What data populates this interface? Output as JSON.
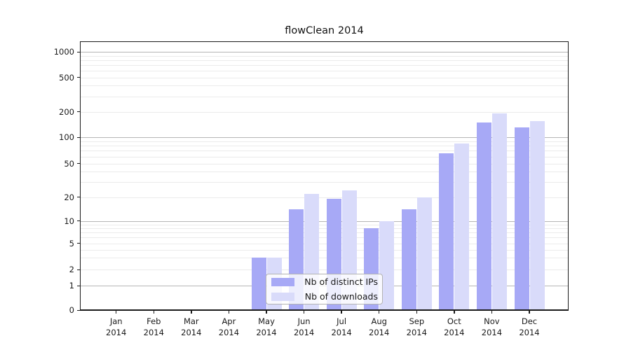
{
  "chart_data": {
    "type": "bar",
    "title": "flowClean 2014",
    "categories": [
      "Jan",
      "Feb",
      "Mar",
      "Apr",
      "May",
      "Jun",
      "Jul",
      "Aug",
      "Sep",
      "Oct",
      "Nov",
      "Dec"
    ],
    "category_year": "2014",
    "series": [
      {
        "name": "Nb of distinct IPs",
        "color": "#a7a9f6",
        "values": [
          0,
          0,
          0,
          0,
          3,
          14,
          19,
          8,
          14,
          65,
          150,
          130
        ]
      },
      {
        "name": "Nb of downloads",
        "color": "#d9dbfa",
        "values": [
          0,
          0,
          0,
          0,
          3,
          22,
          24,
          10,
          20,
          85,
          190,
          155
        ]
      }
    ],
    "yticks": [
      0,
      1,
      2,
      5,
      10,
      20,
      50,
      100,
      200,
      500,
      1000
    ],
    "yscale": "symlog",
    "ylim": [
      0,
      1300
    ],
    "xlabel": "",
    "ylabel": "",
    "grid": true,
    "legend_position": "lower-center"
  },
  "colors": {
    "ips_bar": "#a7a9f6",
    "downloads_bar": "#d9dbfa",
    "major_grid": "#b5b5b5",
    "minor_grid": "#ebebeb",
    "spine": "#1a1a1a",
    "text": "#1a1a1a",
    "legend_border": "#b3b3b3",
    "legend_background": "rgba(255,255,255,0.8)"
  }
}
